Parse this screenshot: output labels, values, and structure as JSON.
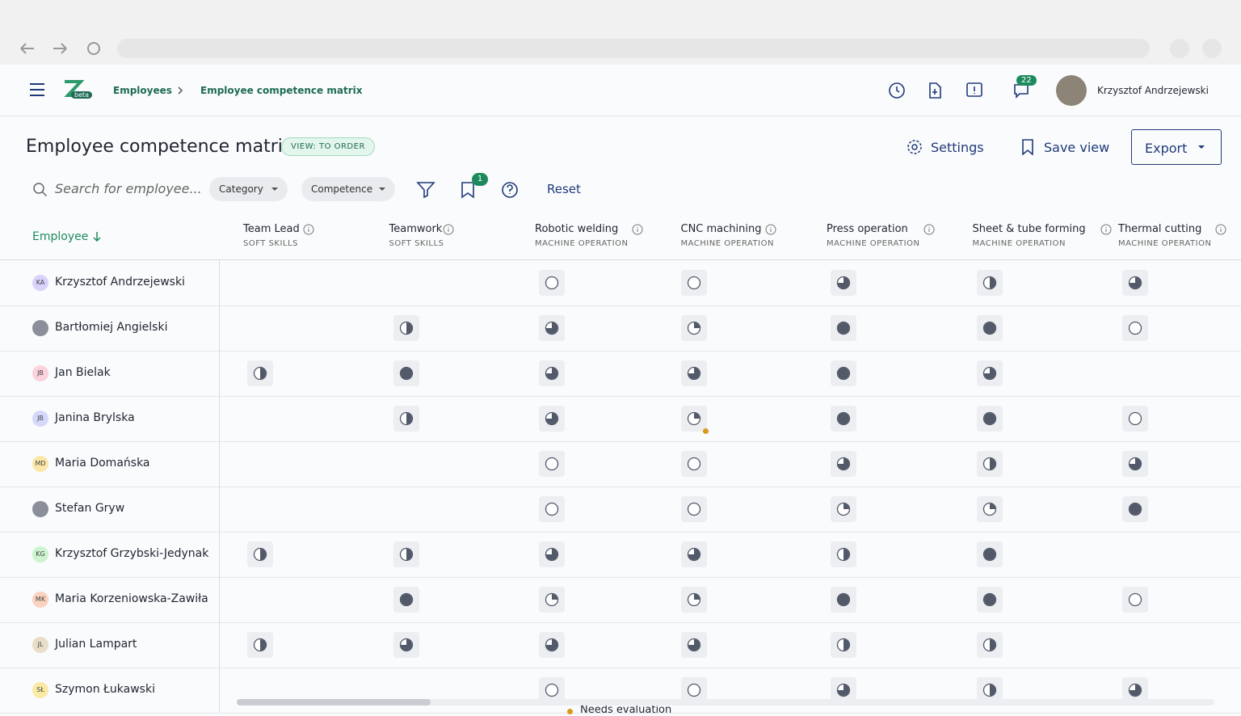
{
  "header": {
    "breadcrumb": [
      "Employees",
      "Employee competence matrix"
    ],
    "beta": "beta",
    "notifications": "22",
    "user": "Krzysztof Andrzejewski"
  },
  "page": {
    "title": "Employee competence matrix",
    "view_badge": "VIEW: TO ORDER",
    "settings": "Settings",
    "save_view": "Save view",
    "export": "Export"
  },
  "filters": {
    "search_placeholder": "Search for employee...",
    "category": "Category",
    "competence": "Competence",
    "bookmarks": "1",
    "reset": "Reset"
  },
  "table": {
    "employee_header": "Employee",
    "columns": [
      {
        "name": "Team Lead",
        "group": "SOFT SKILLS"
      },
      {
        "name": "Teamwork",
        "group": "SOFT SKILLS"
      },
      {
        "name": "Robotic welding",
        "group": "MACHINE OPERATION"
      },
      {
        "name": "CNC machining",
        "group": "MACHINE OPERATION"
      },
      {
        "name": "Press operation",
        "group": "MACHINE OPERATION"
      },
      {
        "name": "Sheet & tube forming",
        "group": "MACHINE OPERATION"
      },
      {
        "name": "Thermal cutting",
        "group": "MACHINE OPERATION"
      }
    ],
    "rows": [
      {
        "name": "Krzysztof Andrzejewski",
        "initials": "KA",
        "color": "#d9d2fa",
        "levels": [
          null,
          null,
          0,
          0,
          0.75,
          0.5,
          0.75
        ]
      },
      {
        "name": "Bartłomiej Angielski",
        "initials": null,
        "color": "#8a8f99",
        "levels": [
          null,
          0.5,
          0.75,
          0.25,
          1,
          1,
          0
        ]
      },
      {
        "name": "Jan Bielak",
        "initials": "JB",
        "color": "#fbd3dc",
        "levels": [
          0.5,
          1,
          0.75,
          0.75,
          1,
          0.75,
          null
        ]
      },
      {
        "name": "Janina Brylska",
        "initials": "JB",
        "color": "#d6d8fb",
        "levels": [
          null,
          0.5,
          0.75,
          0.25,
          1,
          1,
          0
        ]
      },
      {
        "name": "Maria Domańska",
        "initials": "MD",
        "color": "#fbe7a8",
        "levels": [
          null,
          null,
          0,
          0,
          0.75,
          0.5,
          0.75
        ]
      },
      {
        "name": "Stefan Gryw",
        "initials": null,
        "color": "#8a8f99",
        "levels": [
          null,
          null,
          0,
          0,
          0.25,
          0.25,
          1
        ]
      },
      {
        "name": "Krzysztof Grzybski-Jedynak",
        "initials": "KG",
        "color": "#cdf3cf",
        "levels": [
          0.5,
          0.5,
          0.75,
          0.75,
          0.5,
          1,
          null
        ]
      },
      {
        "name": "Maria Korzeniowska-Zawiła",
        "initials": "MK",
        "color": "#fbd2bf",
        "levels": [
          null,
          1,
          0.25,
          0.25,
          1,
          1,
          0
        ]
      },
      {
        "name": "Julian Lampart",
        "initials": "JL",
        "color": "#e9ddc8",
        "levels": [
          0.5,
          0.75,
          0.75,
          0.75,
          0.5,
          0.5,
          null
        ]
      },
      {
        "name": "Szymon Łukawski",
        "initials": "SŁ",
        "color": "#fbe9a6",
        "levels": [
          null,
          null,
          0,
          0,
          0.75,
          0.5,
          0.75
        ]
      }
    ],
    "needs_evaluation": {
      "row": 3,
      "column": 3,
      "label": "Needs evaluation"
    }
  }
}
